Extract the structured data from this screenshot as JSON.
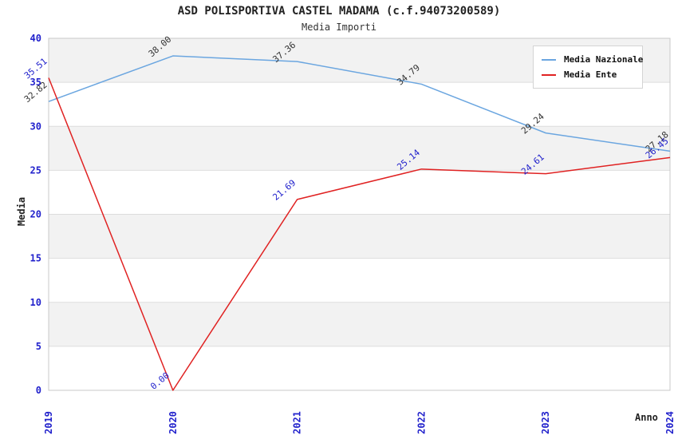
{
  "chart_data": {
    "type": "line",
    "title": "ASD POLISPORTIVA CASTEL MADAMA (c.f.94073200589)",
    "subtitle": "Media Importi",
    "xlabel": "Anno",
    "ylabel": "Media",
    "categories": [
      "2019",
      "2020",
      "2021",
      "2022",
      "2023",
      "2024"
    ],
    "y_ticks": [
      0,
      5,
      10,
      15,
      20,
      25,
      30,
      35,
      40
    ],
    "ylim": [
      0,
      40
    ],
    "grid": "horizontal-bands-alternating",
    "legend_position": "top-right",
    "series": [
      {
        "name": "Media Nazionale",
        "color": "#6ba6e0",
        "label_color": "#333333",
        "values": [
          32.82,
          38.0,
          37.36,
          34.79,
          29.24,
          27.18
        ],
        "labels": [
          "32.82",
          "38.00",
          "37.36",
          "34.79",
          "29.24",
          "27.18"
        ]
      },
      {
        "name": "Media Ente",
        "color": "#e02222",
        "label_color": "#2222cc",
        "values": [
          35.51,
          0.0,
          21.69,
          25.14,
          24.61,
          26.45
        ],
        "labels": [
          "35.51",
          "0.00",
          "21.69",
          "25.14",
          "24.61",
          "26.45"
        ]
      }
    ],
    "colors": {
      "tick_label": "#2222cc",
      "band_gray": "#f2f2f2",
      "grid_line": "#dddddd",
      "frame": "#c8c8c8"
    }
  }
}
